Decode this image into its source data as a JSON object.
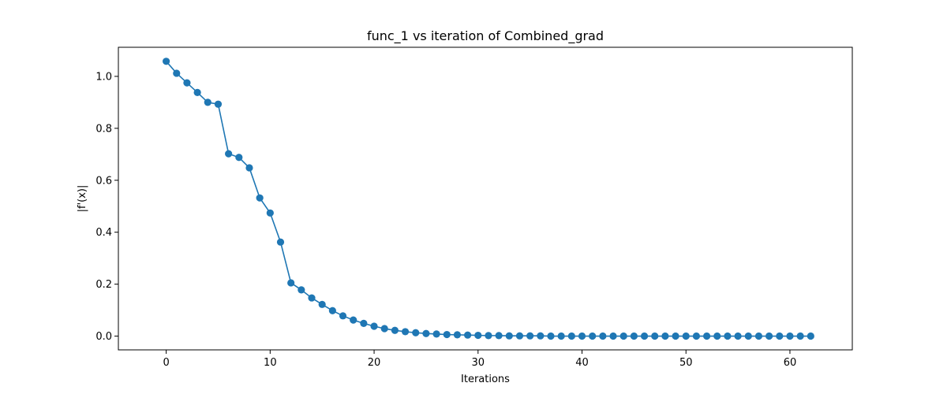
{
  "chart_data": {
    "type": "line",
    "title": "func_1 vs iteration of Combined_grad",
    "xlabel": "Iterations",
    "ylabel": "|f'(x)|",
    "xlim": [
      -4.6,
      66
    ],
    "ylim": [
      -0.053,
      1.112
    ],
    "xticks": [
      0,
      10,
      20,
      30,
      40,
      50,
      60
    ],
    "yticks": [
      0.0,
      0.2,
      0.4,
      0.6,
      0.8,
      1.0
    ],
    "ytick_labels": [
      "0.0",
      "0.2",
      "0.4",
      "0.6",
      "0.8",
      "1.0"
    ],
    "grid": false,
    "line_color": "#1f77b4",
    "marker": "circle",
    "x": [
      0,
      1,
      2,
      3,
      4,
      5,
      6,
      7,
      8,
      9,
      10,
      11,
      12,
      13,
      14,
      15,
      16,
      17,
      18,
      19,
      20,
      21,
      22,
      23,
      24,
      25,
      26,
      27,
      28,
      29,
      30,
      31,
      32,
      33,
      34,
      35,
      36,
      37,
      38,
      39,
      40,
      41,
      42,
      43,
      44,
      45,
      46,
      47,
      48,
      49,
      50,
      51,
      52,
      53,
      54,
      55,
      56,
      57,
      58,
      59,
      60,
      61,
      62
    ],
    "values": [
      1.058,
      1.012,
      0.975,
      0.938,
      0.9,
      0.893,
      0.702,
      0.688,
      0.648,
      0.532,
      0.474,
      0.362,
      0.205,
      0.178,
      0.147,
      0.122,
      0.098,
      0.078,
      0.062,
      0.049,
      0.038,
      0.029,
      0.022,
      0.017,
      0.013,
      0.01,
      0.008,
      0.006,
      0.005,
      0.004,
      0.003,
      0.002,
      0.002,
      0.001,
      0.001,
      0.001,
      0.001,
      0.0,
      0.0,
      0.0,
      0.0,
      0.0,
      0.0,
      0.0,
      0.0,
      0.0,
      0.0,
      0.0,
      0.0,
      0.0,
      0.0,
      0.0,
      0.0,
      0.0,
      0.0,
      0.0,
      0.0,
      0.0,
      0.0,
      0.0,
      0.0,
      0.0,
      0.0
    ]
  }
}
